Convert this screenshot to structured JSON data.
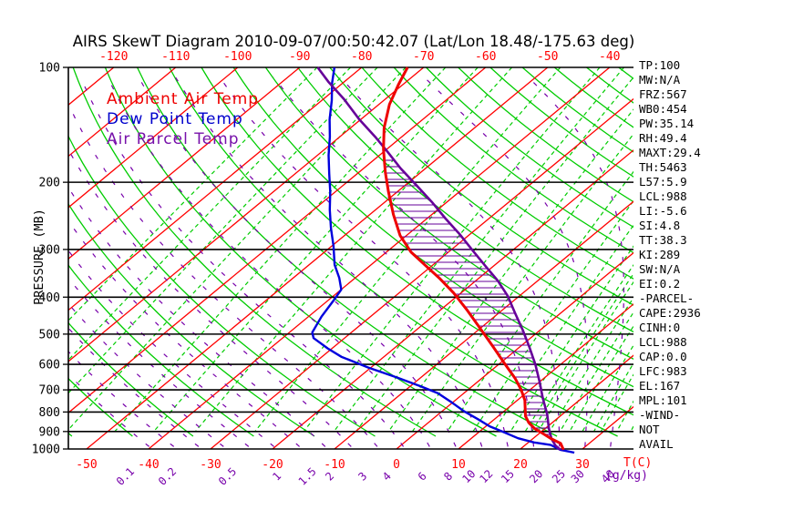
{
  "title": "AIRS SkewT Diagram 2010-09-07/00:50:42.07 (Lat/Lon 18.48/-175.63 deg)",
  "legend": {
    "items": [
      {
        "label": "Ambient Air Temp",
        "color": "#ee0000"
      },
      {
        "label": "Dew Point Temp",
        "color": "#0000cc"
      },
      {
        "label": "Air Parcel Temp",
        "color": "#7711aa"
      }
    ]
  },
  "axes": {
    "pressure_label": "PRESSURE (MB)",
    "pressure_ticks": [
      100,
      200,
      300,
      400,
      500,
      600,
      700,
      800,
      900,
      1000
    ],
    "top_temp_ticks": [
      -120,
      -110,
      -100,
      -90,
      -80,
      -70,
      -60,
      -50,
      -40
    ],
    "bottom_temp_ticks": [
      -50,
      -40,
      -30,
      -20,
      -10,
      0,
      10,
      20,
      30
    ],
    "temp_unit": "T(C)",
    "mixing_ratio_unit": "(g/kg)"
  },
  "panel": {
    "lines": [
      "TP:100",
      "MW:N/A",
      "FRZ:567",
      "WB0:454",
      "PW:35.14",
      "RH:49.4",
      "MAXT:29.4",
      "TH:5463",
      "L57:5.9",
      "LCL:988",
      "LI:-5.6",
      "SI:4.8",
      "TT:38.3",
      "KI:289",
      "SW:N/A",
      "EI:0.2",
      "-PARCEL-",
      "CAPE:2936",
      "CINH:0",
      "LCL:988",
      "CAP:0.0",
      "LFC:983",
      "EL:167",
      "MPL:101",
      "-WIND-",
      "NOT",
      "AVAIL"
    ]
  },
  "colors": {
    "isotherm": "#ff0000",
    "dry_adiabat": "#00cc00",
    "mixing_ratio": "#00cc00",
    "moist_adiabat": "#7700aa",
    "pressure_line": "#000000",
    "ambient_curve": "#ee0000",
    "dewpoint_curve": "#0000dd",
    "parcel_curve": "#660099",
    "hatch": "#660099",
    "temp_tick": "#ff0000",
    "mix_label": "#7700aa",
    "panel_text": "#000000"
  },
  "chart_data": {
    "type": "line",
    "title": "AIRS SkewT Diagram 2010-09-07/00:50:42.07 (Lat/Lon 18.48/-175.63 deg)",
    "x_axis": {
      "label": "T(C)",
      "bottom_ticks": [
        -50,
        -40,
        -30,
        -20,
        -10,
        0,
        10,
        20,
        30
      ],
      "top_ticks": [
        -120,
        -110,
        -100,
        -90,
        -80,
        -70,
        -60,
        -50,
        -40
      ]
    },
    "y_axis": {
      "label": "PRESSURE (MB)",
      "scale": "log",
      "ticks": [
        100,
        200,
        300,
        400,
        500,
        600,
        700,
        800,
        900,
        1000
      ],
      "range": [
        100,
        1000
      ]
    },
    "legend_position": "top-left-inside",
    "series": [
      {
        "name": "Ambient Air Temp",
        "units": [
          "hPa",
          "degC"
        ],
        "points": [
          [
            100,
            -72.6
          ],
          [
            111,
            -70.7
          ],
          [
            125,
            -68.3
          ],
          [
            144,
            -64.6
          ],
          [
            164,
            -60.5
          ],
          [
            188,
            -55.8
          ],
          [
            212,
            -51.4
          ],
          [
            243,
            -46.2
          ],
          [
            276,
            -41.0
          ],
          [
            305,
            -36.0
          ],
          [
            331,
            -31.0
          ],
          [
            356,
            -26.5
          ],
          [
            390,
            -21.2
          ],
          [
            434,
            -15.5
          ],
          [
            484,
            -9.9
          ],
          [
            540,
            -4.3
          ],
          [
            595,
            0.6
          ],
          [
            652,
            5.3
          ],
          [
            700,
            8.6
          ],
          [
            745,
            11.2
          ],
          [
            820,
            14.4
          ],
          [
            853,
            16.2
          ],
          [
            884,
            18.3
          ],
          [
            911,
            20.6
          ],
          [
            938,
            22.8
          ],
          [
            967,
            25.4
          ],
          [
            1005,
            27.1
          ]
        ]
      },
      {
        "name": "Dew Point Temp",
        "units": [
          "hPa",
          "degC"
        ],
        "points": [
          [
            100,
            -84.4
          ],
          [
            110,
            -81.7
          ],
          [
            122,
            -78.4
          ],
          [
            137,
            -75.0
          ],
          [
            152,
            -71.6
          ],
          [
            170,
            -68.2
          ],
          [
            190,
            -64.5
          ],
          [
            212,
            -60.8
          ],
          [
            236,
            -57.4
          ],
          [
            264,
            -53.6
          ],
          [
            294,
            -49.7
          ],
          [
            329,
            -45.9
          ],
          [
            356,
            -42.6
          ],
          [
            382,
            -40.0
          ],
          [
            408,
            -39.1
          ],
          [
            450,
            -37.9
          ],
          [
            495,
            -36.3
          ],
          [
            512,
            -35.0
          ],
          [
            545,
            -30.7
          ],
          [
            573,
            -26.9
          ],
          [
            612,
            -20.4
          ],
          [
            649,
            -14.0
          ],
          [
            685,
            -8.3
          ],
          [
            714,
            -4.2
          ],
          [
            757,
            0.0
          ],
          [
            797,
            3.6
          ],
          [
            835,
            7.3
          ],
          [
            872,
            10.6
          ],
          [
            904,
            14.1
          ],
          [
            937,
            17.5
          ],
          [
            961,
            20.9
          ],
          [
            976,
            24.1
          ],
          [
            1005,
            26.6
          ],
          [
            1022,
            29.4
          ]
        ]
      },
      {
        "name": "Air Parcel Temp",
        "units": [
          "hPa",
          "degC"
        ],
        "points": [
          [
            100,
            -87.1
          ],
          [
            109,
            -82.6
          ],
          [
            121,
            -76.7
          ],
          [
            137,
            -70.2
          ],
          [
            152,
            -64.3
          ],
          [
            166,
            -59.5
          ],
          [
            184,
            -54.0
          ],
          [
            204,
            -48.1
          ],
          [
            225,
            -42.5
          ],
          [
            249,
            -37.0
          ],
          [
            274,
            -31.6
          ],
          [
            303,
            -26.2
          ],
          [
            331,
            -21.4
          ],
          [
            362,
            -16.5
          ],
          [
            397,
            -11.9
          ],
          [
            440,
            -7.4
          ],
          [
            488,
            -2.8
          ],
          [
            541,
            1.6
          ],
          [
            600,
            5.9
          ],
          [
            665,
            9.9
          ],
          [
            736,
            13.7
          ],
          [
            810,
            17.5
          ],
          [
            884,
            20.6
          ],
          [
            940,
            23.0
          ],
          [
            980,
            25.0
          ],
          [
            1005,
            26.6
          ]
        ]
      }
    ],
    "grid": {
      "isotherms": {
        "min": -160,
        "max": 40,
        "step": 10
      },
      "dry_adiabats": {
        "min": -60,
        "max": 190,
        "step": 10
      },
      "moist_adiabats": {
        "min": -36,
        "max": 44,
        "step": 4
      },
      "mixing_ratio_lines": [
        0.002,
        0.005,
        0.01,
        0.02,
        0.05,
        0.1,
        0.2,
        0.5,
        1,
        1.5,
        2,
        3,
        4,
        6,
        8,
        10,
        12,
        14,
        15,
        16,
        18,
        20,
        22,
        25,
        28,
        30,
        35,
        40,
        45,
        50
      ],
      "mixing_ratio_labels": [
        0.1,
        0.2,
        0.5,
        1,
        1.5,
        2,
        3,
        4,
        6,
        8,
        10,
        12,
        15,
        20,
        25,
        30,
        40
      ],
      "cape_hatch": true
    }
  }
}
